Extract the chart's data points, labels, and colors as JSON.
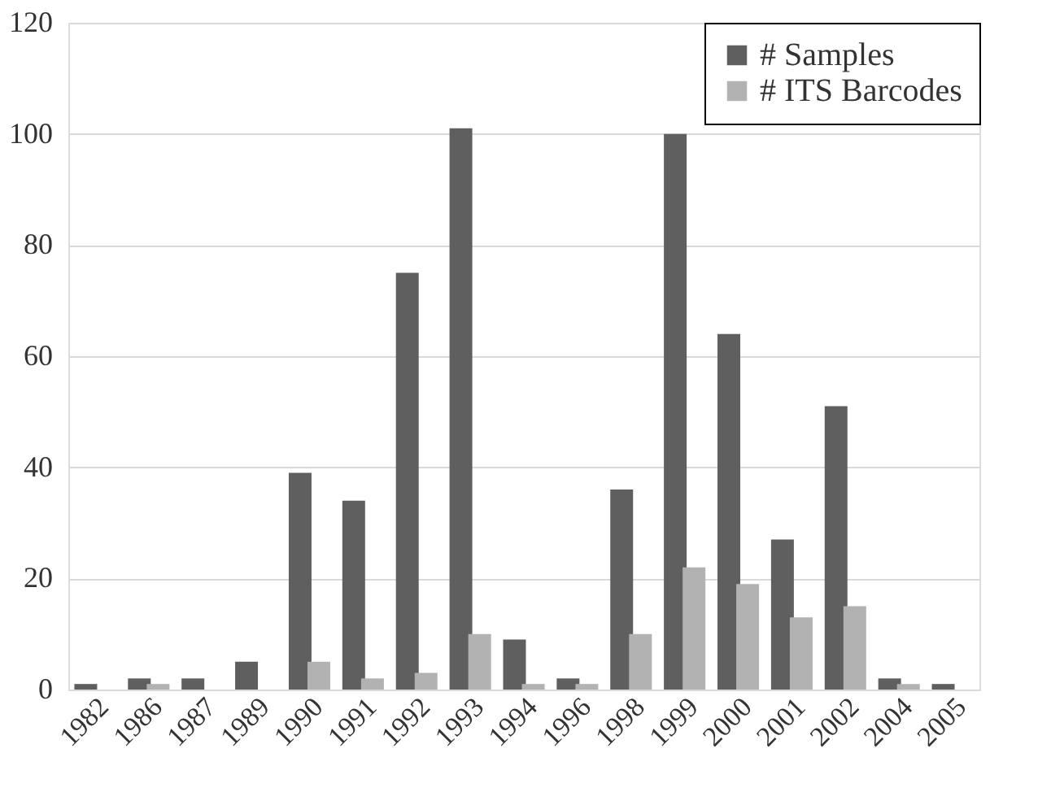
{
  "chart_data": {
    "type": "bar",
    "categories": [
      "1982",
      "1986",
      "1987",
      "1989",
      "1990",
      "1991",
      "1992",
      "1993",
      "1994",
      "1996",
      "1998",
      "1999",
      "2000",
      "2001",
      "2002",
      "2004",
      "2005"
    ],
    "series": [
      {
        "name": "# Samples",
        "color": "#5f5f5f",
        "values": [
          1,
          2,
          2,
          5,
          39,
          34,
          75,
          101,
          9,
          2,
          36,
          100,
          64,
          27,
          51,
          2,
          1
        ]
      },
      {
        "name": "# ITS Barcodes",
        "color": "#b2b2b2",
        "values": [
          0,
          1,
          0,
          0,
          5,
          2,
          3,
          10,
          1,
          1,
          10,
          22,
          19,
          13,
          15,
          1,
          0
        ]
      }
    ],
    "ylim": [
      0,
      120
    ],
    "yticks": [
      0,
      20,
      40,
      60,
      80,
      100,
      120
    ],
    "grid": "y",
    "legend": "top right"
  }
}
